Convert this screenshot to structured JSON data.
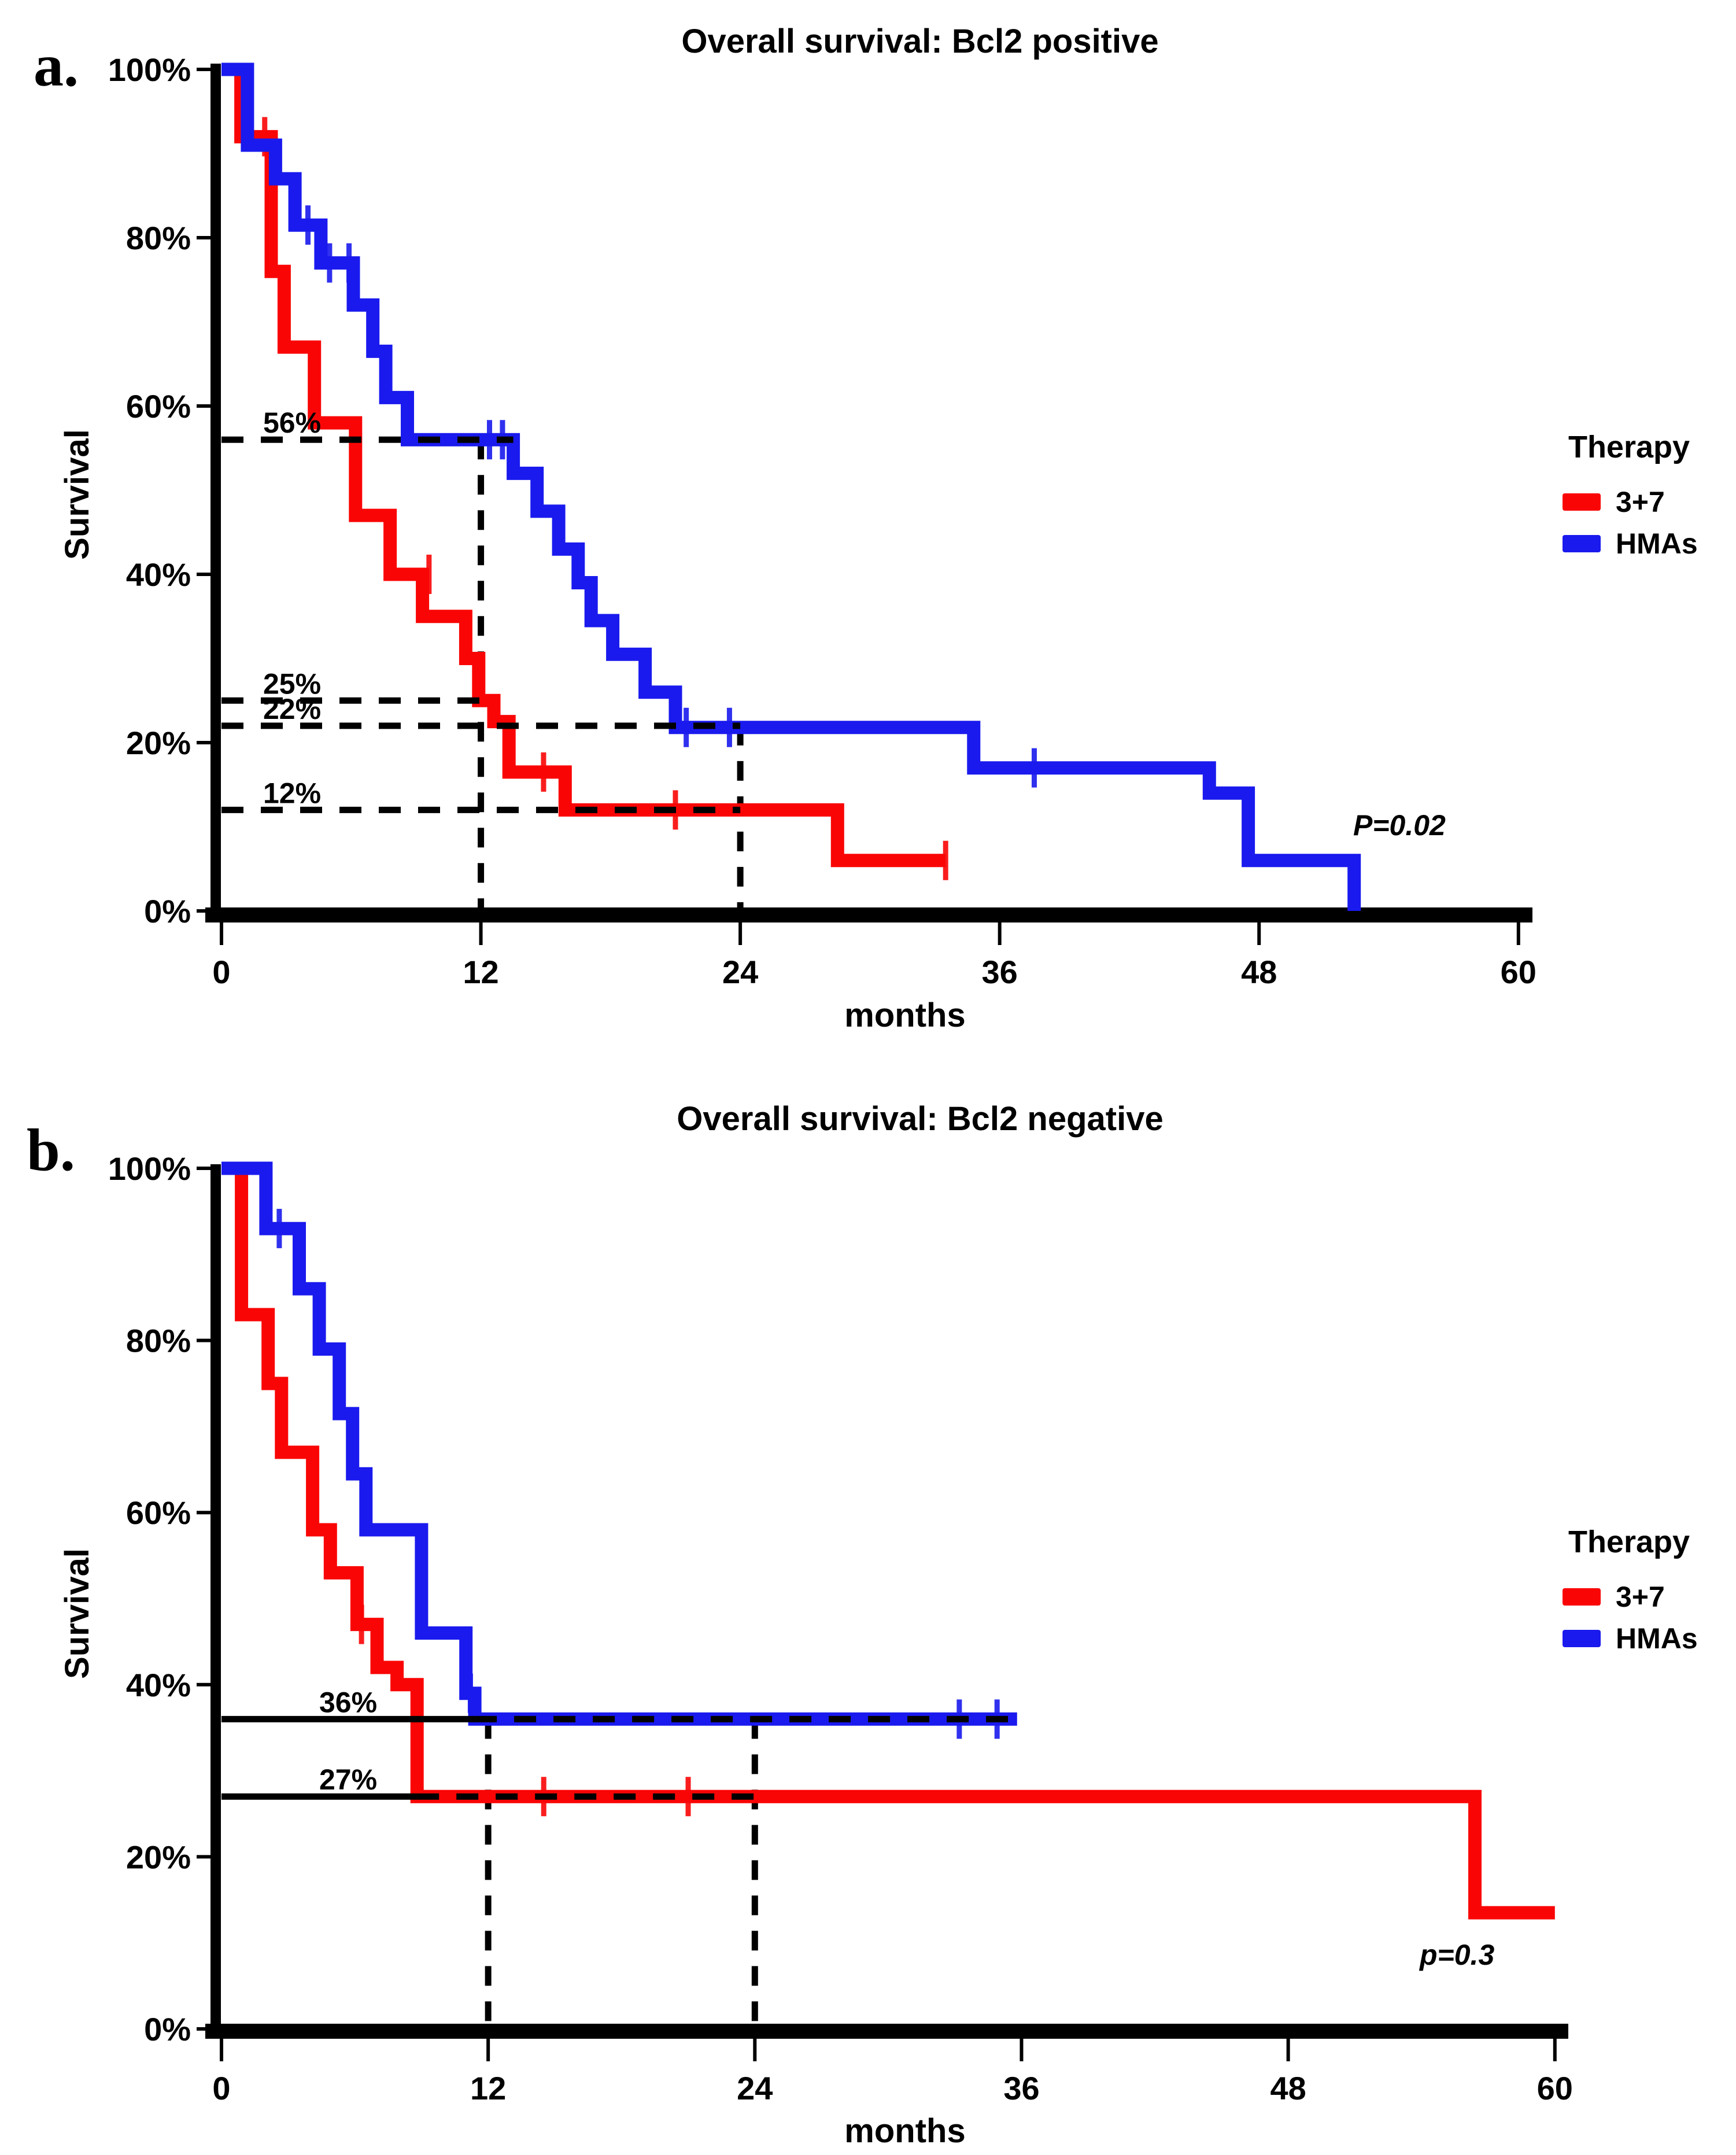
{
  "figure": {
    "background": "#ffffff"
  },
  "panels": [
    {
      "panel_label": "a.",
      "title": "Overall survival: Bcl2 positive",
      "xlabel": "months",
      "ylabel": "Survival",
      "p_value": "P=0.02",
      "legend": {
        "title": "Therapy",
        "entries": [
          {
            "label": "3+7",
            "color": "#fa0505"
          },
          {
            "label": "HMAs",
            "color": "#1a1aee"
          }
        ]
      }
    },
    {
      "panel_label": "b.",
      "title": "Overall survival: Bcl2 negative",
      "xlabel": "months",
      "ylabel": "Survival",
      "p_value": "p=0.3",
      "legend": {
        "title": "Therapy",
        "entries": [
          {
            "label": "3+7",
            "color": "#fa0505"
          },
          {
            "label": "HMAs",
            "color": "#1a1aee"
          }
        ]
      }
    }
  ],
  "chart_data": [
    {
      "type": "line",
      "subtype": "kaplan-meier-step",
      "title": "Overall survival: Bcl2 positive",
      "xlabel": "months",
      "ylabel": "Survival",
      "xlim": [
        0,
        60
      ],
      "ylim": [
        0,
        100
      ],
      "grid": false,
      "legend_position": "right",
      "x_ticks": [
        0,
        12,
        24,
        36,
        48,
        60
      ],
      "y_ticks": [
        {
          "value": 0,
          "label": "0%"
        },
        {
          "value": 20,
          "label": "20%"
        },
        {
          "value": 40,
          "label": "40%"
        },
        {
          "value": 60,
          "label": "60%"
        },
        {
          "value": 80,
          "label": "80%"
        },
        {
          "value": 100,
          "label": "100%"
        }
      ],
      "p_value": "P=0.02",
      "ref_lines": [
        {
          "label": "56%",
          "pct": 56,
          "segments": [
            {
              "from": 0,
              "to": 13.5,
              "style": "dashed"
            }
          ]
        },
        {
          "label": "25%",
          "pct": 25,
          "segments": [
            {
              "from": 0,
              "to": 12.2,
              "style": "dashed"
            }
          ]
        },
        {
          "label": "22%",
          "pct": 22,
          "segments": [
            {
              "from": 0,
              "to": 24,
              "style": "dashed"
            }
          ]
        },
        {
          "label": "12%",
          "pct": 12,
          "segments": [
            {
              "from": 0,
              "to": 24,
              "style": "dashed"
            }
          ]
        }
      ],
      "v_lines": [
        {
          "month": 12,
          "top_pct": 56
        },
        {
          "month": 24,
          "top_pct": 22
        }
      ],
      "series": [
        {
          "name": "3+7",
          "color": "#fa0505",
          "points": [
            [
              0,
              100
            ],
            [
              0.9,
              100
            ],
            [
              0.9,
              92
            ],
            [
              2.3,
              92
            ],
            [
              2.3,
              76
            ],
            [
              2.9,
              76
            ],
            [
              2.9,
              67
            ],
            [
              4.3,
              67
            ],
            [
              4.3,
              58
            ],
            [
              6.2,
              58
            ],
            [
              6.2,
              47
            ],
            [
              7.8,
              47
            ],
            [
              7.8,
              40
            ],
            [
              9.3,
              40
            ],
            [
              9.3,
              35
            ],
            [
              11.3,
              35
            ],
            [
              11.3,
              30
            ],
            [
              11.9,
              30
            ],
            [
              11.9,
              25
            ],
            [
              12.6,
              25
            ],
            [
              12.6,
              22.5
            ],
            [
              13.3,
              22.5
            ],
            [
              13.3,
              16.5
            ],
            [
              15.9,
              16.5
            ],
            [
              15.9,
              12
            ],
            [
              28.5,
              12
            ],
            [
              28.5,
              6
            ],
            [
              33.5,
              6
            ]
          ],
          "censor_marks": [
            [
              2.0,
              92
            ],
            [
              9.6,
              40
            ],
            [
              14.9,
              16.5
            ],
            [
              21,
              12
            ],
            [
              33.5,
              6
            ]
          ]
        },
        {
          "name": "HMAs",
          "color": "#1a1aee",
          "points": [
            [
              0,
              100
            ],
            [
              1.2,
              100
            ],
            [
              1.2,
              91
            ],
            [
              2.5,
              91
            ],
            [
              2.5,
              87
            ],
            [
              3.4,
              87
            ],
            [
              3.4,
              81.5
            ],
            [
              4.6,
              81.5
            ],
            [
              4.6,
              77
            ],
            [
              6.1,
              77
            ],
            [
              6.1,
              72
            ],
            [
              7,
              72
            ],
            [
              7,
              66.5
            ],
            [
              7.6,
              66.5
            ],
            [
              7.6,
              61
            ],
            [
              8.6,
              61
            ],
            [
              8.6,
              56
            ],
            [
              13.5,
              56
            ],
            [
              13.5,
              52
            ],
            [
              14.6,
              52
            ],
            [
              14.6,
              47.5
            ],
            [
              15.6,
              47.5
            ],
            [
              15.6,
              43
            ],
            [
              16.5,
              43
            ],
            [
              16.5,
              39
            ],
            [
              17.1,
              39
            ],
            [
              17.1,
              34.5
            ],
            [
              18.1,
              34.5
            ],
            [
              18.1,
              30.5
            ],
            [
              19.6,
              30.5
            ],
            [
              19.6,
              26
            ],
            [
              21,
              26
            ],
            [
              21,
              21.8
            ],
            [
              34.8,
              21.8
            ],
            [
              34.8,
              17
            ],
            [
              45.7,
              17
            ],
            [
              45.7,
              14
            ],
            [
              47.5,
              14
            ],
            [
              47.5,
              6
            ],
            [
              52.4,
              6
            ],
            [
              52.4,
              0
            ]
          ],
          "censor_marks": [
            [
              4.0,
              81.5
            ],
            [
              5.0,
              77
            ],
            [
              5.9,
              77
            ],
            [
              12.4,
              56
            ],
            [
              13.0,
              56
            ],
            [
              21.5,
              21.8
            ],
            [
              23.5,
              21.8
            ],
            [
              37.6,
              17
            ]
          ]
        }
      ]
    },
    {
      "type": "line",
      "subtype": "kaplan-meier-step",
      "title": "Overall survival: Bcl2 negative",
      "xlabel": "months",
      "ylabel": "Survival",
      "xlim": [
        0,
        60
      ],
      "ylim": [
        0,
        100
      ],
      "grid": false,
      "legend_position": "right",
      "x_ticks": [
        0,
        12,
        24,
        36,
        48,
        60
      ],
      "y_ticks": [
        {
          "value": 0,
          "label": "0%"
        },
        {
          "value": 20,
          "label": "20%"
        },
        {
          "value": 40,
          "label": "40%"
        },
        {
          "value": 60,
          "label": "60%"
        },
        {
          "value": 80,
          "label": "80%"
        },
        {
          "value": 100,
          "label": "100%"
        }
      ],
      "p_value": "p=0.3",
      "ref_lines": [
        {
          "label": "36%",
          "pct": 36,
          "segments": [
            {
              "from": 0,
              "to": 11.4,
              "style": "solid"
            },
            {
              "from": 11.4,
              "to": 35.8,
              "style": "dashed"
            }
          ]
        },
        {
          "label": "27%",
          "pct": 27,
          "segments": [
            {
              "from": 0,
              "to": 8.8,
              "style": "solid"
            },
            {
              "from": 8.8,
              "to": 24,
              "style": "dashed"
            }
          ]
        }
      ],
      "v_lines": [
        {
          "month": 12,
          "top_pct": 36
        },
        {
          "month": 24,
          "top_pct": 36
        }
      ],
      "series": [
        {
          "name": "3+7",
          "color": "#fa0505",
          "points": [
            [
              0,
              100
            ],
            [
              0.9,
              100
            ],
            [
              0.9,
              83
            ],
            [
              2.1,
              83
            ],
            [
              2.1,
              75
            ],
            [
              2.7,
              75
            ],
            [
              2.7,
              67
            ],
            [
              4.1,
              67
            ],
            [
              4.1,
              58
            ],
            [
              4.9,
              58
            ],
            [
              4.9,
              53
            ],
            [
              6.1,
              53
            ],
            [
              6.1,
              47
            ],
            [
              7.0,
              47
            ],
            [
              7.0,
              42
            ],
            [
              7.9,
              42
            ],
            [
              7.9,
              40
            ],
            [
              8.8,
              40
            ],
            [
              8.8,
              27
            ],
            [
              56.4,
              27
            ],
            [
              56.4,
              13.5
            ],
            [
              60,
              13.5
            ]
          ],
          "censor_marks": [
            [
              6.3,
              47
            ],
            [
              14.5,
              27
            ],
            [
              21,
              27
            ]
          ]
        },
        {
          "name": "HMAs",
          "color": "#1a1aee",
          "points": [
            [
              0,
              100
            ],
            [
              2,
              100
            ],
            [
              2,
              93
            ],
            [
              3.5,
              93
            ],
            [
              3.5,
              86
            ],
            [
              4.4,
              86
            ],
            [
              4.4,
              79
            ],
            [
              5.3,
              79
            ],
            [
              5.3,
              71.5
            ],
            [
              5.9,
              71.5
            ],
            [
              5.9,
              64.5
            ],
            [
              6.5,
              64.5
            ],
            [
              6.5,
              58
            ],
            [
              9,
              58
            ],
            [
              9,
              46
            ],
            [
              11,
              46
            ],
            [
              11,
              39
            ],
            [
              11.4,
              39
            ],
            [
              11.4,
              36
            ],
            [
              35.8,
              36
            ]
          ],
          "censor_marks": [
            [
              2.6,
              93
            ],
            [
              11.2,
              39
            ],
            [
              33.2,
              36
            ],
            [
              34.9,
              36
            ]
          ]
        }
      ]
    }
  ]
}
